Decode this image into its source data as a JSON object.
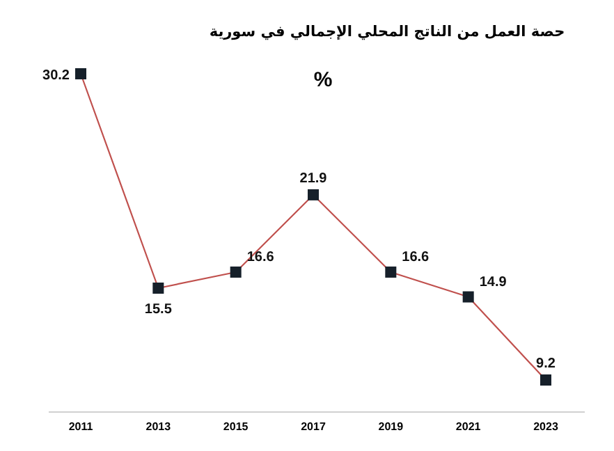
{
  "chart_data": {
    "type": "line",
    "title": "حصة العمل من الناتج المحلي الإجمالي في سورية",
    "subtitle": "%",
    "categories": [
      "2011",
      "2013",
      "2015",
      "2017",
      "2019",
      "2021",
      "2023"
    ],
    "series": [
      {
        "color": "#c0504d",
        "values": [
          30.2,
          15.5,
          16.6,
          21.9,
          16.6,
          14.9,
          9.2
        ]
      }
    ],
    "marker": "square",
    "data_labels": true
  }
}
